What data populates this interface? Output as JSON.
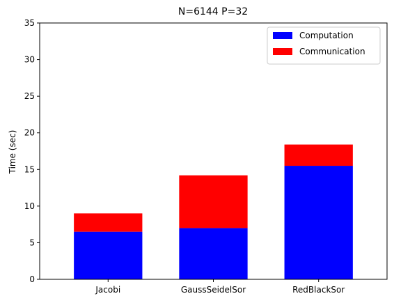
{
  "chart_data": {
    "type": "bar",
    "stacked": true,
    "title": "N=6144 P=32",
    "xlabel": "",
    "ylabel": "Time (sec)",
    "ylim": [
      0,
      35
    ],
    "yticks": [
      0,
      5,
      10,
      15,
      20,
      25,
      30,
      35
    ],
    "grid": false,
    "legend_position": "top-right",
    "categories": [
      "Jacobi",
      "GaussSeidelSor",
      "RedBlackSor"
    ],
    "series": [
      {
        "name": "Computation",
        "color": "#0000ff",
        "values": [
          6.5,
          7.0,
          15.5
        ]
      },
      {
        "name": "Communication",
        "color": "#ff0000",
        "values": [
          2.5,
          7.2,
          2.9
        ]
      }
    ]
  }
}
